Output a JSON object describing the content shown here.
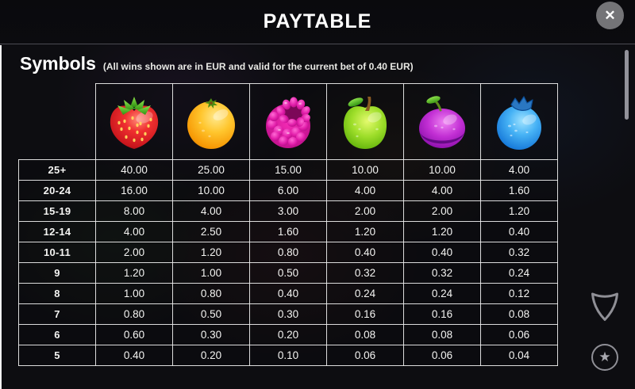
{
  "header": {
    "title": "PAYTABLE",
    "close_icon": "✕"
  },
  "section": {
    "title": "Symbols",
    "subtitle": "(All wins shown are in EUR and valid for the current bet of 0.40 EUR)"
  },
  "currency": "EUR",
  "current_bet": "0.40",
  "paytable": {
    "type": "table",
    "symbols": [
      "strawberry",
      "orange",
      "raspberry",
      "apple",
      "plum",
      "blueberry"
    ],
    "symbol_colors": {
      "strawberry": "#e8242a",
      "orange": "#f79a06",
      "raspberry": "#d914a0",
      "apple": "#8fd41c",
      "plum": "#b41fcf",
      "blueberry": "#2f9bef"
    },
    "rows": [
      {
        "label": "25+",
        "values": [
          "40.00",
          "25.00",
          "15.00",
          "10.00",
          "10.00",
          "4.00"
        ]
      },
      {
        "label": "20-24",
        "values": [
          "16.00",
          "10.00",
          "6.00",
          "4.00",
          "4.00",
          "1.60"
        ]
      },
      {
        "label": "15-19",
        "values": [
          "8.00",
          "4.00",
          "3.00",
          "2.00",
          "2.00",
          "1.20"
        ]
      },
      {
        "label": "12-14",
        "values": [
          "4.00",
          "2.50",
          "1.60",
          "1.20",
          "1.20",
          "0.40"
        ]
      },
      {
        "label": "10-11",
        "values": [
          "2.00",
          "1.20",
          "0.80",
          "0.40",
          "0.40",
          "0.32"
        ]
      },
      {
        "label": "9",
        "values": [
          "1.20",
          "1.00",
          "0.50",
          "0.32",
          "0.32",
          "0.24"
        ]
      },
      {
        "label": "8",
        "values": [
          "1.00",
          "0.80",
          "0.40",
          "0.24",
          "0.24",
          "0.12"
        ]
      },
      {
        "label": "7",
        "values": [
          "0.80",
          "0.50",
          "0.30",
          "0.16",
          "0.16",
          "0.08"
        ]
      },
      {
        "label": "6",
        "values": [
          "0.60",
          "0.30",
          "0.20",
          "0.08",
          "0.08",
          "0.06"
        ]
      },
      {
        "label": "5",
        "values": [
          "0.40",
          "0.20",
          "0.10",
          "0.06",
          "0.06",
          "0.04"
        ]
      }
    ]
  },
  "side_controls": {
    "shield_icon": "shield-down-icon",
    "star_icon": "★"
  }
}
